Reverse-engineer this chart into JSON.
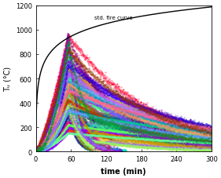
{
  "title": "",
  "xlabel": "time (min)",
  "ylabel": "Tᵤ (°C)",
  "xlim": [
    0,
    300
  ],
  "ylim": [
    0,
    1200
  ],
  "xticks": [
    0,
    60,
    120,
    180,
    240,
    300
  ],
  "yticks": [
    0,
    200,
    400,
    600,
    800,
    1000,
    1200
  ],
  "std_fire_label": "std. fire curve",
  "background_color": "#ffffff",
  "num_curves": 80,
  "peak_time": 55,
  "peak_temps_min": 150,
  "peak_temps_max": 980,
  "decay_end_temps_min": 20,
  "decay_end_temps_max": 200
}
